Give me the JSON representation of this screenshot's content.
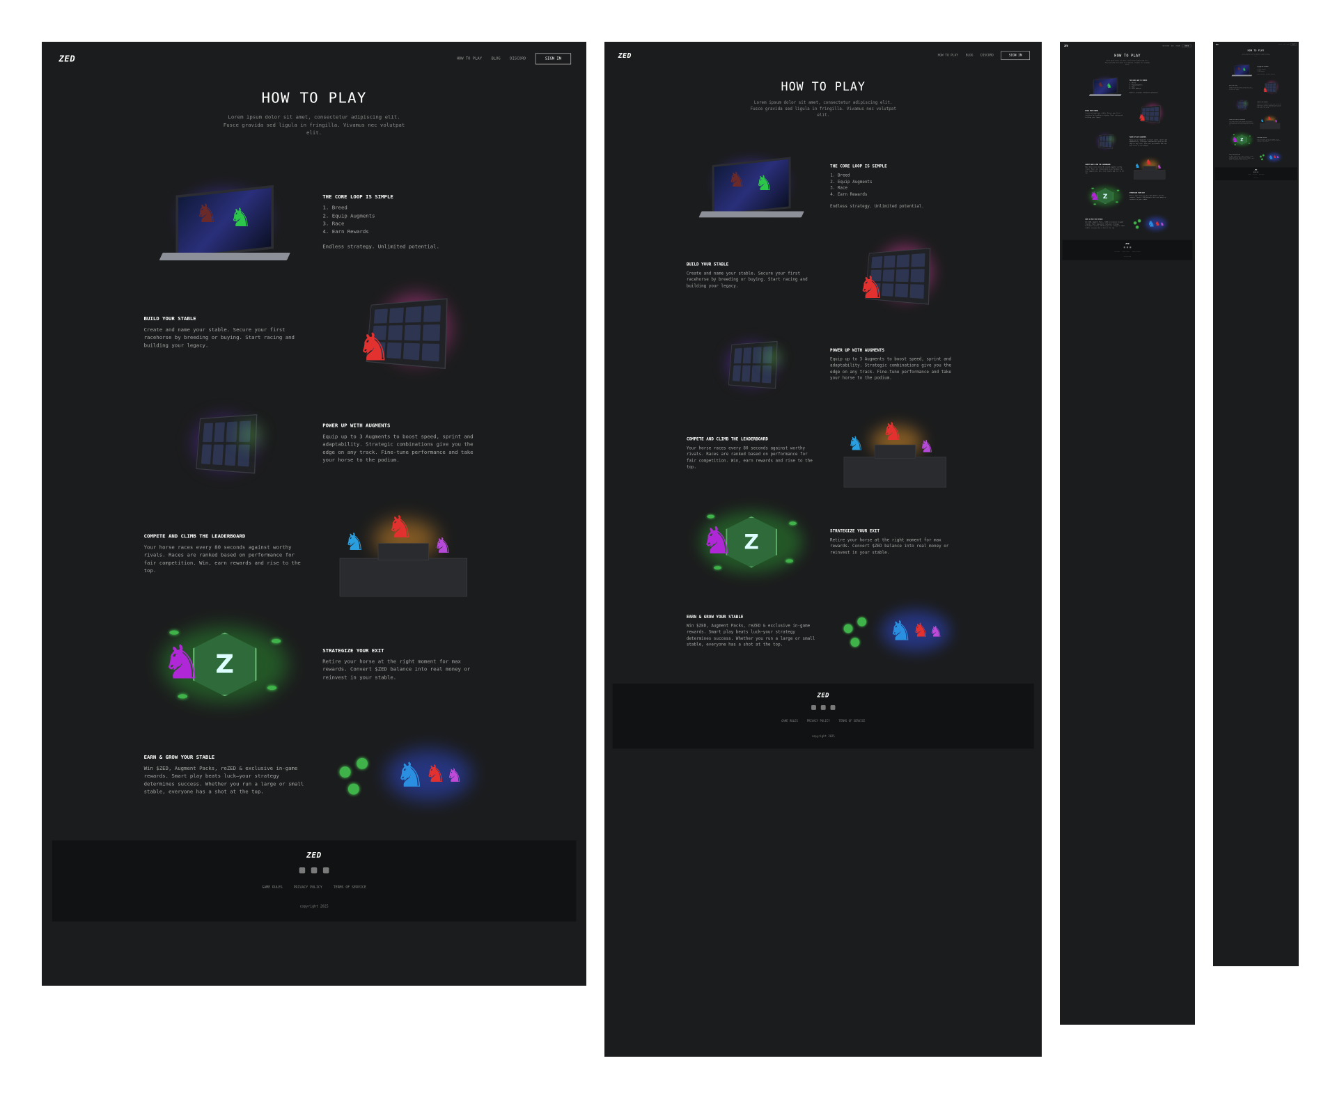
{
  "nav": {
    "logo": "ZED",
    "links": [
      "HOW TO PLAY",
      "BLOG",
      "DISCORD"
    ],
    "signin": "SIGN IN"
  },
  "hero": {
    "title": "HOW TO PLAY",
    "subtitle": "Lorem ipsum dolor sit amet, consectetur adipiscing elit. Fusce gravida sed ligula in fringilla. Vivamus nec volutpat elit."
  },
  "sections": [
    {
      "title": "THE CORE LOOP IS SIMPLE",
      "steps": [
        "Breed",
        "Equip Augments",
        "Race",
        "Earn Rewards"
      ],
      "body": "Endless strategy. Unlimited potential.",
      "art": "laptop-race-icon"
    },
    {
      "title": "BUILD YOUR STABLE",
      "body": "Create and name your stable. Secure your first racehorse by breeding or buying. Start racing and building your legacy.",
      "art": "stable-grid-icon"
    },
    {
      "title": "POWER UP WITH AUGMENTS",
      "body": "Equip up to 3 Augments to boost speed, sprint and adaptability. Strategic combinations give you the edge on any track. Fine-tune performance and take your horse to the podium.",
      "art": "augments-panel-icon"
    },
    {
      "title": "COMPETE AND CLIMB THE LEADERBOARD",
      "body": "Your horse races every 80 seconds against worthy rivals. Races are ranked based on performance for fair competition. Win, earn rewards and rise to the top.",
      "art": "podium-icon"
    },
    {
      "title": "STRATEGIZE YOUR EXIT",
      "body": "Retire your horse at the right moment for max rewards. Convert $ZED balance into real money or reinvest in your stable.",
      "art": "zed-badge-icon"
    },
    {
      "title": "EARN & GROW YOUR STABLE",
      "body": "Win $ZED, Augment Packs, reZED & exclusive in-game rewards. Smart play beats luck—your strategy determines success. Whether you run a large or small stable, everyone has a shot at the top.",
      "art": "rewards-horses-icon"
    }
  ],
  "footer": {
    "logo": "ZED",
    "social": [
      "x-icon",
      "discord-icon",
      "telegram-icon"
    ],
    "links": [
      "GAME RULES",
      "PRIVACY POLICY",
      "TERMS OF SERVICE"
    ],
    "copyright": "copyright 2025"
  },
  "colors": {
    "background": "#1b1c1d",
    "footer": "#111213",
    "text": "#a5a5a5",
    "heading": "#ffffff"
  }
}
